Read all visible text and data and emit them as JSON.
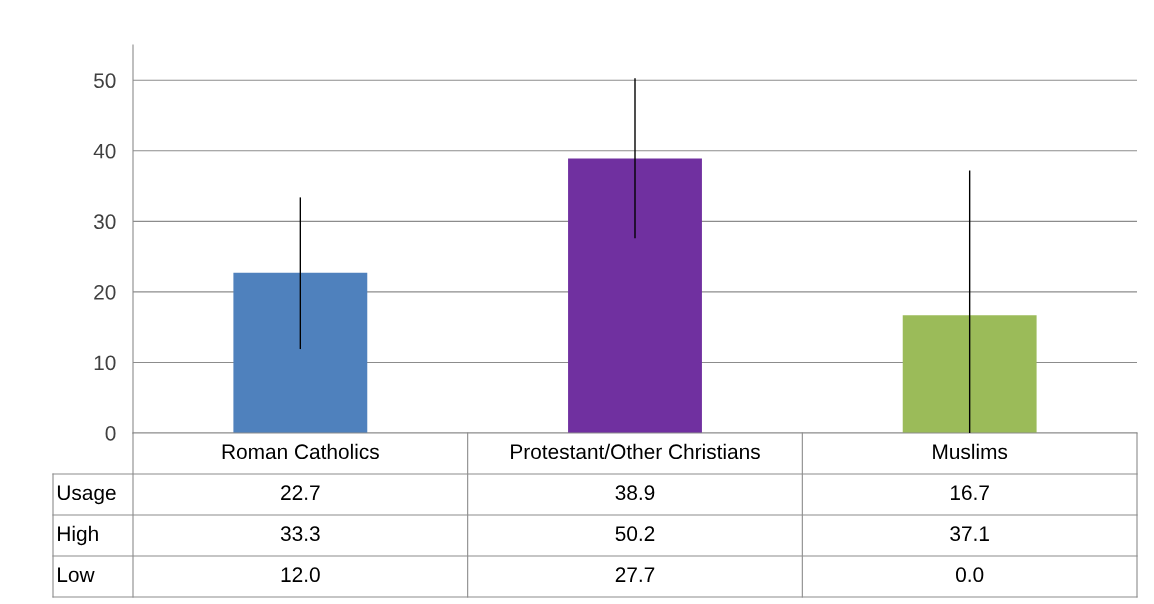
{
  "chart_data": {
    "type": "bar",
    "categories": [
      "Roman Catholics",
      "Protestant/Other Christians",
      "Muslims"
    ],
    "series": [
      {
        "name": "Usage",
        "values": [
          22.7,
          38.9,
          16.7
        ],
        "colors": [
          "#4f81bd",
          "#7030a0",
          "#9bbb59"
        ],
        "errors": [
          [
            12.0,
            33.3
          ],
          [
            27.7,
            50.2
          ],
          [
            0.0,
            37.1
          ]
        ]
      }
    ],
    "annotations": [
      "High",
      "33.3",
      "50.2",
      "37.1",
      "Low",
      "12.0",
      "27.7",
      "0.0"
    ],
    "ylim": [
      0,
      55
    ],
    "yticks": [
      0,
      10,
      20,
      30,
      40,
      50
    ],
    "grid": "y",
    "data_labels": true
  }
}
